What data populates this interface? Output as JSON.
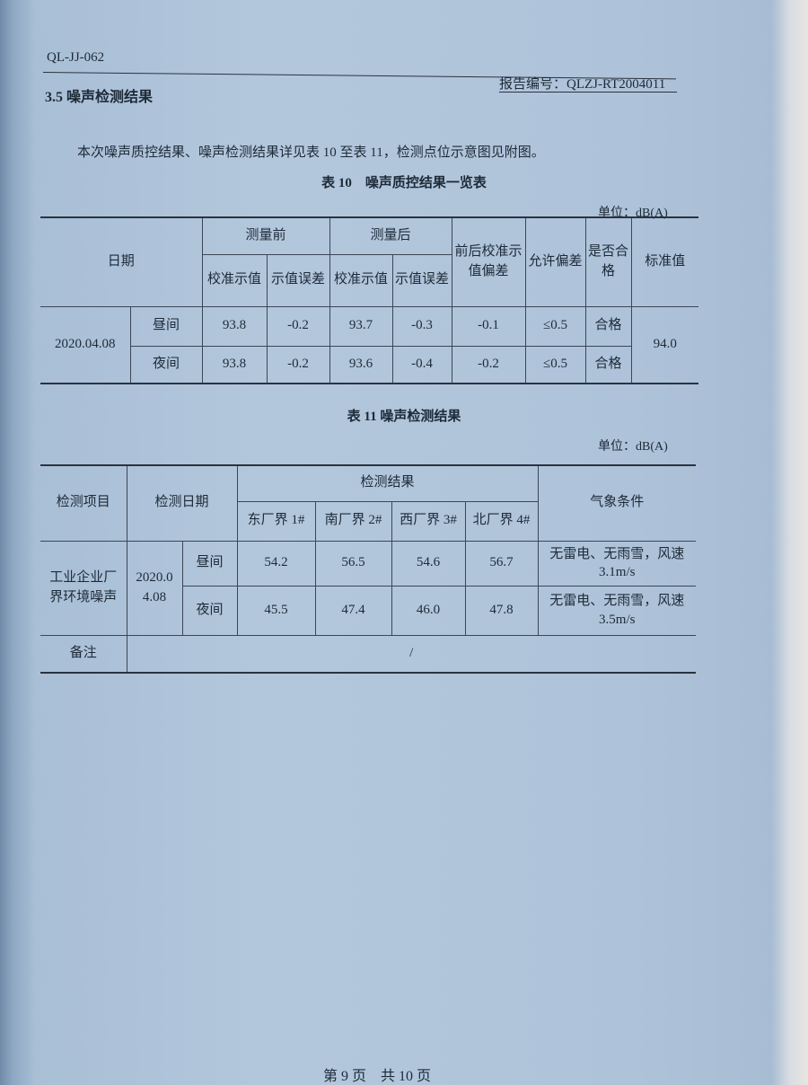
{
  "header": {
    "doc_code": "QL-JJ-062",
    "report_no": "报告编号：QLZJ-RT2004011"
  },
  "section_title": "3.5 噪声检测结果",
  "intro": "本次噪声质控结果、噪声检测结果详见表 10 至表 11，检测点位示意图见附图。",
  "table10": {
    "caption": "表 10　噪声质控结果一览表",
    "unit": "单位：dB(A)",
    "headers": {
      "date": "日期",
      "before": "测量前",
      "after": "测量后",
      "cal_before": "校准示值",
      "err_before": "示值误差",
      "cal_after": "校准示值",
      "err_after": "示值误差",
      "diff": "前后校准示值偏差",
      "allowed": "允许偏差",
      "pass": "是否合格",
      "standard": "标准值"
    },
    "date": "2020.04.08",
    "standard_value": "94.0",
    "rows": [
      {
        "period": "昼间",
        "cal_before": "93.8",
        "err_before": "-0.2",
        "cal_after": "93.7",
        "err_after": "-0.3",
        "diff": "-0.1",
        "allowed": "≤0.5",
        "pass": "合格"
      },
      {
        "period": "夜间",
        "cal_before": "93.8",
        "err_before": "-0.2",
        "cal_after": "93.6",
        "err_after": "-0.4",
        "diff": "-0.2",
        "allowed": "≤0.5",
        "pass": "合格"
      }
    ]
  },
  "table11": {
    "caption": "表 11 噪声检测结果",
    "unit": "单位：dB(A)",
    "headers": {
      "item": "检测项目",
      "date": "检测日期",
      "result": "检测结果",
      "weather": "气象条件",
      "points": [
        "东厂界 1#",
        "南厂界 2#",
        "西厂界 3#",
        "北厂界 4#"
      ]
    },
    "item": "工业企业厂界环境噪声",
    "date": "2020.04.08",
    "rows": [
      {
        "period": "昼间",
        "values": [
          "54.2",
          "56.5",
          "54.6",
          "56.7"
        ],
        "weather": "无雷电、无雨雪，风速3.1m/s"
      },
      {
        "period": "夜间",
        "values": [
          "45.5",
          "47.4",
          "46.0",
          "47.8"
        ],
        "weather": "无雷电、无雨雪，风速3.5m/s"
      }
    ],
    "remark_label": "备注",
    "remark": "/"
  },
  "footer": {
    "page": "第 9 页　共 10 页"
  }
}
